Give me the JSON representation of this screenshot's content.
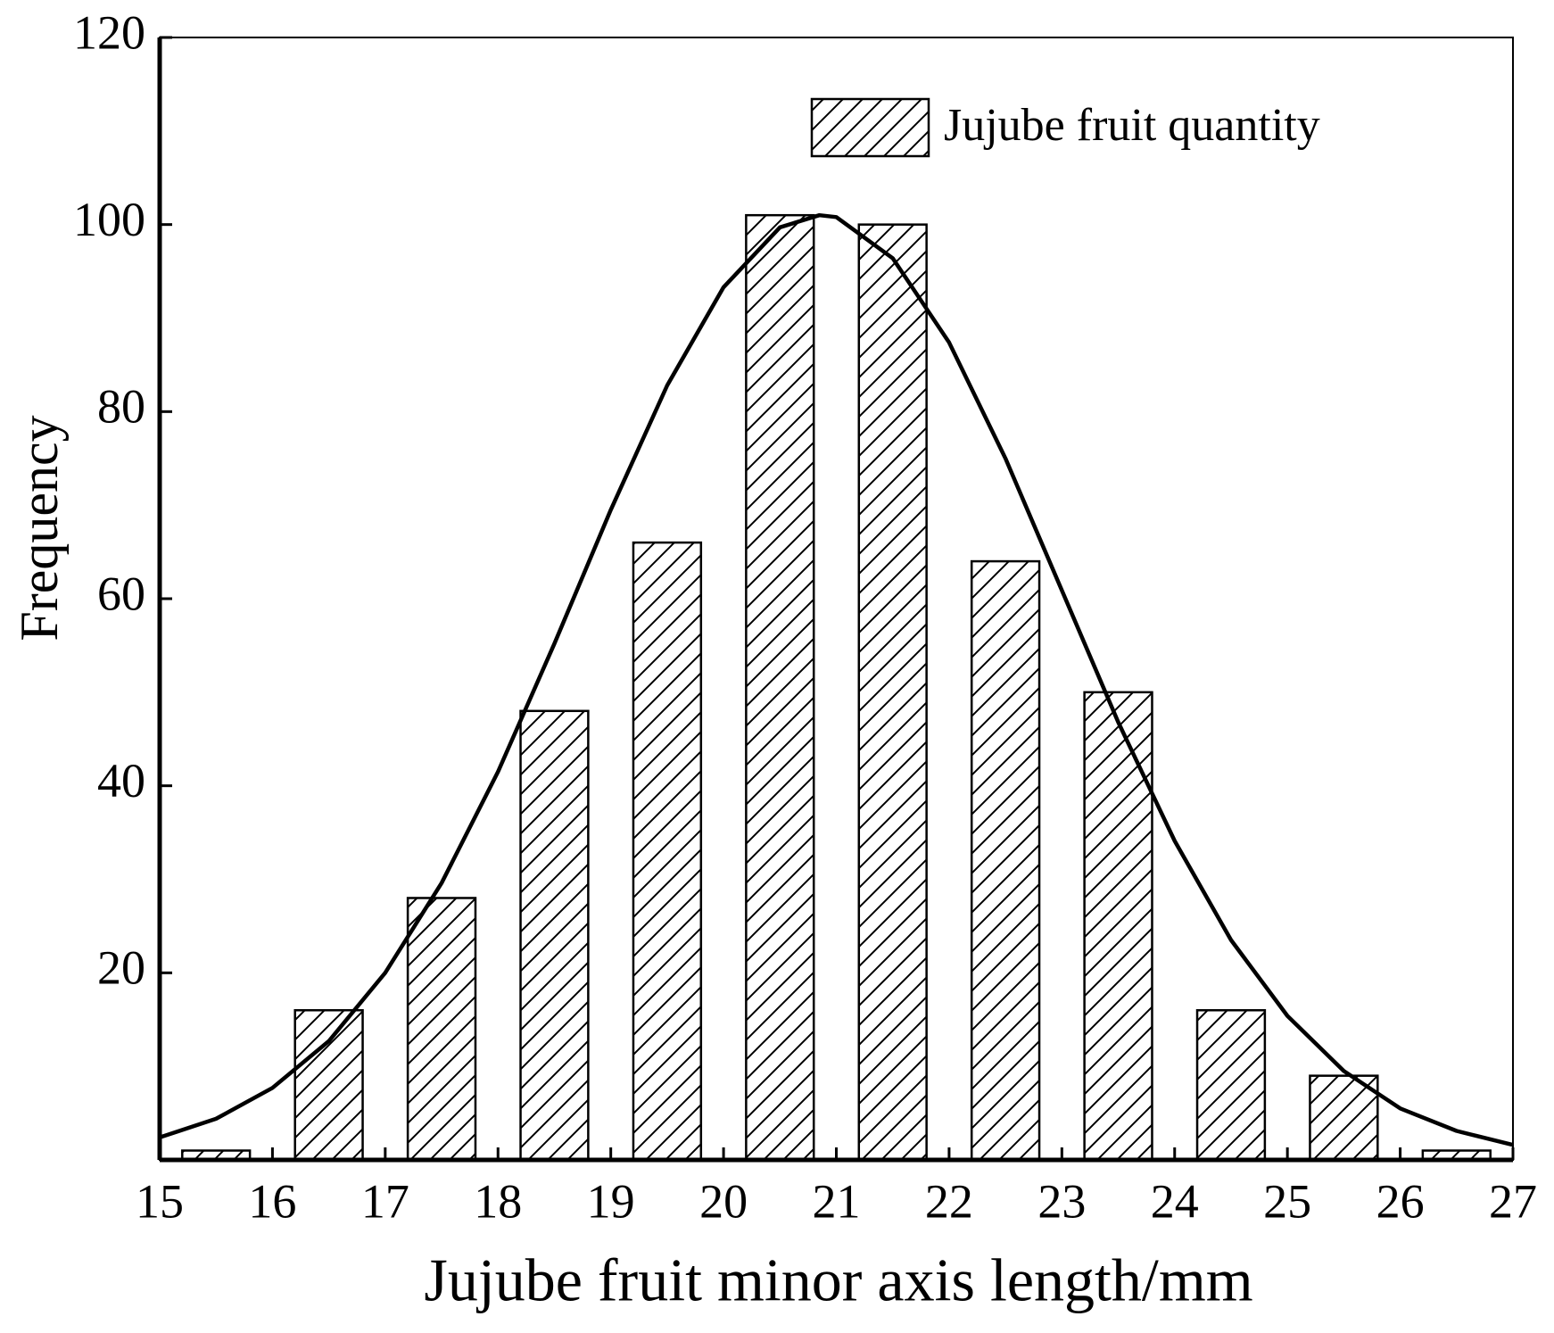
{
  "chart_data": {
    "type": "bar",
    "xlabel": "Jujube fruit minor axis length/mm",
    "ylabel": "Frequency",
    "xlim": [
      15,
      27
    ],
    "xticks": [
      15,
      16,
      17,
      18,
      19,
      20,
      21,
      22,
      23,
      24,
      25,
      26,
      27
    ],
    "ylim": [
      0,
      120
    ],
    "yticks": [
      20,
      40,
      60,
      80,
      100,
      120
    ],
    "legend": "upper right",
    "series": [
      {
        "name": "Jujube fruit quantity",
        "type": "bar",
        "color": "#000000",
        "x": [
          15.5,
          16.5,
          17.5,
          18.5,
          19.5,
          20.5,
          21.5,
          22.5,
          23.5,
          24.5,
          25.5,
          26.5
        ],
        "values": [
          1,
          16,
          28,
          48,
          66,
          101,
          100,
          64,
          50,
          16,
          9,
          1
        ]
      },
      {
        "type": "line",
        "color": "#000000",
        "x": [
          15,
          15.5,
          16,
          16.5,
          17,
          17.5,
          18,
          18.5,
          19,
          19.5,
          20,
          20.5,
          20.85,
          21,
          21.5,
          22,
          22.5,
          23,
          23.5,
          24,
          24.5,
          25,
          25.5,
          26,
          26.5,
          27
        ],
        "values": [
          2.4,
          4.4,
          7.7,
          12.7,
          20,
          29.6,
          41.5,
          55.2,
          69.5,
          82.8,
          93.3,
          99.7,
          101,
          100.8,
          96.4,
          87.4,
          75,
          60.9,
          46.8,
          34.1,
          23.5,
          15.4,
          9.5,
          5.5,
          3.1,
          1.6
        ]
      }
    ]
  }
}
